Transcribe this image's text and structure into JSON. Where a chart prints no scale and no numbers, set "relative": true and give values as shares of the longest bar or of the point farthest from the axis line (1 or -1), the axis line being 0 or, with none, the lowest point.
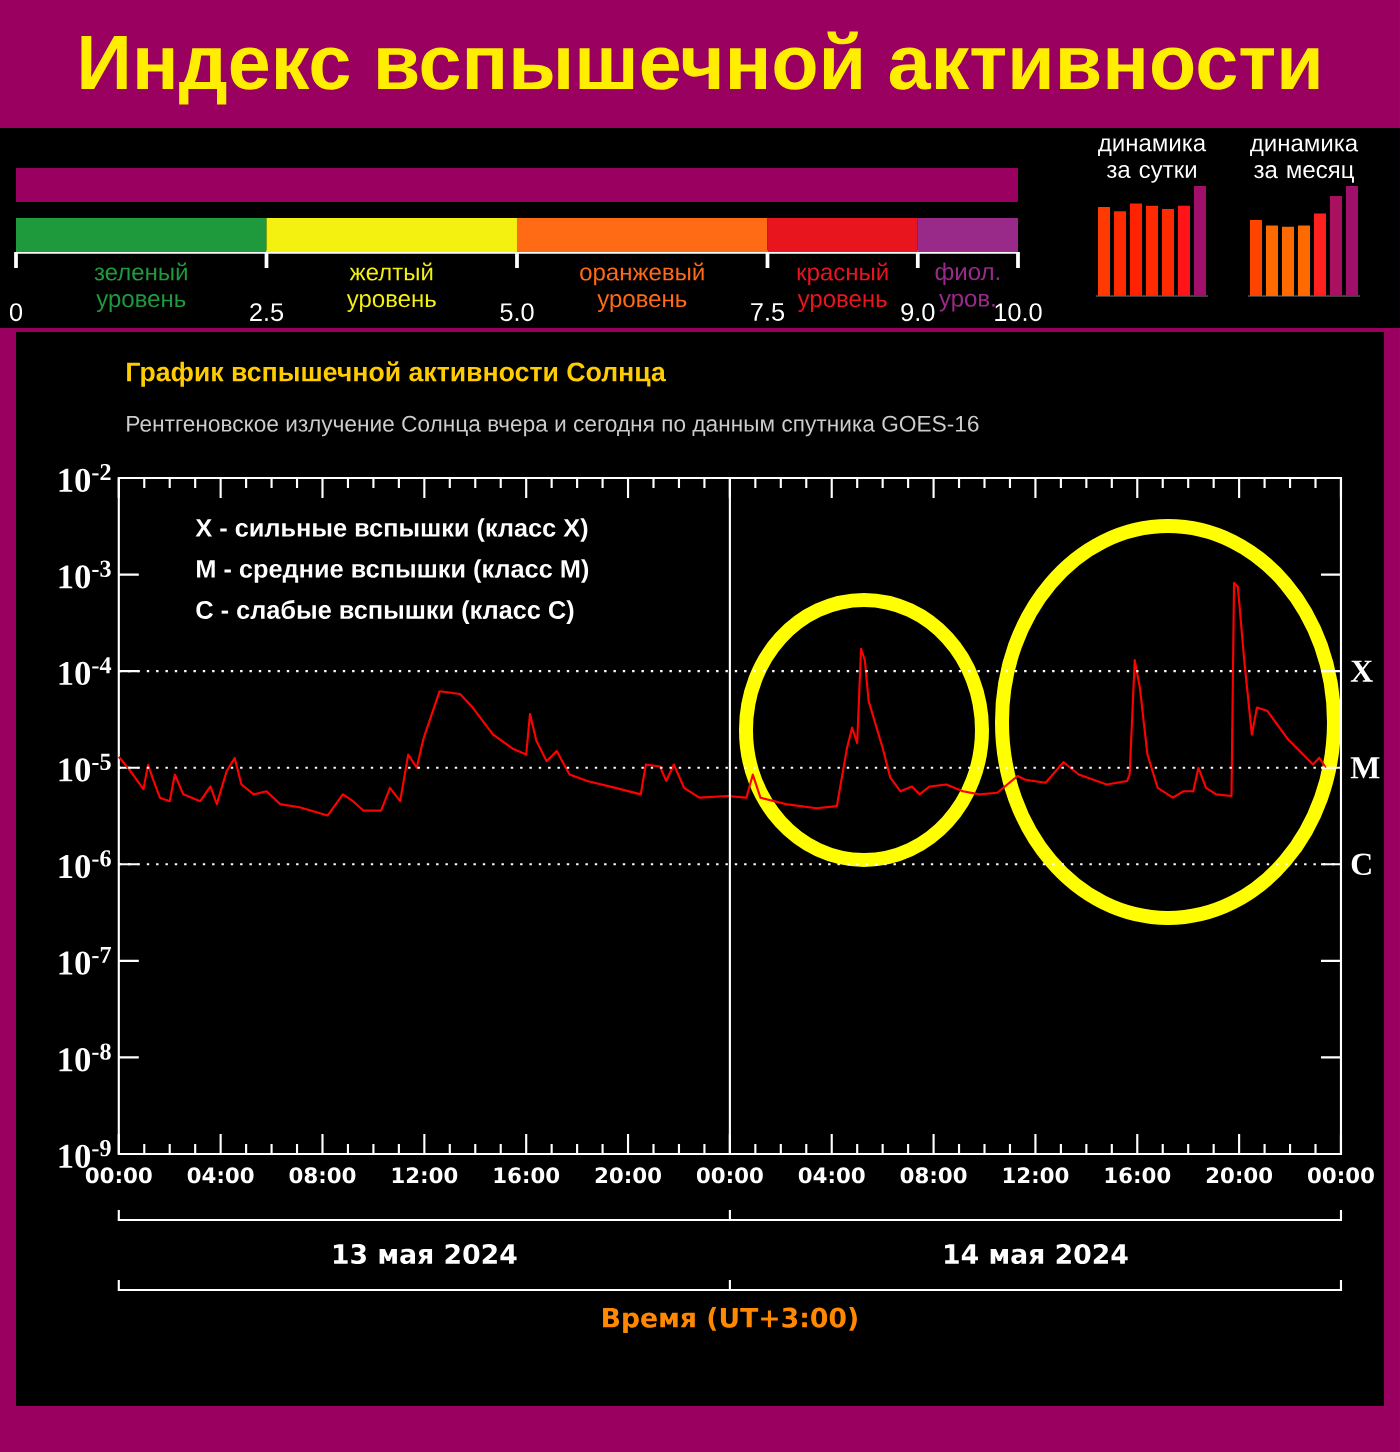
{
  "chart_data": [
    {
      "type": "bar",
      "title": "Индекс вспышечной активности",
      "orientation": "horizontal",
      "stacked": true,
      "categories": [
        null,
        null
      ],
      "xlim": [
        0,
        10
      ],
      "xticks": [
        0,
        2.5,
        {
          "value": 5,
          "label": "5.0"
        },
        7.5,
        {
          "value": 9,
          "label": "9.0"
        },
        {
          "value": 10,
          "label": "10.0"
        }
      ],
      "series": [
        {
          "color": "#990060",
          "values": [
            10,
            null
          ]
        },
        {
          "name": "зеленый уровень",
          "color": "#1e9a3c",
          "values": [
            null,
            2.5
          ]
        },
        {
          "name": "желтый уровень",
          "color": "#f4f010",
          "values": [
            null,
            2.5
          ]
        },
        {
          "name": "оранжевый уровень",
          "color": "#ff6a14",
          "values": [
            null,
            2.5
          ]
        },
        {
          "name": "красный уровень",
          "color": "#e8141e",
          "values": [
            null,
            1.5
          ]
        },
        {
          "name": "фиол. уров.",
          "color": "#9a2a8a",
          "values": [
            null,
            1
          ]
        }
      ]
    },
    {
      "type": "bar",
      "title": "динамика за сутки",
      "relative": true,
      "categories": [
        null,
        null,
        null,
        null,
        null,
        null,
        null
      ],
      "values": [
        0.81,
        0.77,
        0.84,
        0.82,
        0.79,
        0.82,
        1
      ],
      "colors": [
        "#ff3a00",
        "#ff2a00",
        "#ff2200",
        "#ff2a00",
        "#ff2a00",
        "#ff1418",
        "#a0106a"
      ]
    },
    {
      "type": "bar",
      "title": "динамика за месяц",
      "relative": true,
      "categories": [
        null,
        null,
        null,
        null,
        null,
        null,
        null
      ],
      "values": [
        0.69,
        0.64,
        0.63,
        0.64,
        0.75,
        0.91,
        1
      ],
      "colors": [
        "#ff4400",
        "#ff6a00",
        "#ff6a00",
        "#ff6a00",
        "#ff2020",
        "#aa1060",
        "#a0106a"
      ]
    },
    {
      "type": "line",
      "title": "График вспышечной активности Солнца",
      "subtitle": "Рентгеновское излучение Солнца вчера и сегодня по данным спутника GOES-16",
      "xlabel": "Время (UT+3:00)",
      "log": "y",
      "annotations": [
        "13 мая 2024",
        "14 мая 2024",
        "X  - сильные вспышки (класс X)",
        "M - средние вспышки (класс M)",
        "C  - слабые вспышки (класс C)"
      ],
      "xlim": [
        "2024-05-13T00:00",
        "2024-05-15T00:00"
      ],
      "ylim": [
        1e-09,
        0.01
      ],
      "xticks": [
        {
          "value": "2024-05-13T00:00",
          "label": "00:00"
        },
        {
          "value": "2024-05-13T01:00",
          "label": null
        },
        {
          "value": "2024-05-13T02:00",
          "label": null
        },
        {
          "value": "2024-05-13T03:00",
          "label": null
        },
        {
          "value": "2024-05-13T04:00",
          "label": "04:00"
        },
        {
          "value": "2024-05-13T05:00",
          "label": null
        },
        {
          "value": "2024-05-13T06:00",
          "label": null
        },
        {
          "value": "2024-05-13T07:00",
          "label": null
        },
        {
          "value": "2024-05-13T08:00",
          "label": "08:00"
        },
        {
          "value": "2024-05-13T09:00",
          "label": null
        },
        {
          "value": "2024-05-13T10:00",
          "label": null
        },
        {
          "value": "2024-05-13T11:00",
          "label": null
        },
        {
          "value": "2024-05-13T12:00",
          "label": "12:00"
        },
        {
          "value": "2024-05-13T13:00",
          "label": null
        },
        {
          "value": "2024-05-13T14:00",
          "label": null
        },
        {
          "value": "2024-05-13T15:00",
          "label": null
        },
        {
          "value": "2024-05-13T16:00",
          "label": "16:00"
        },
        {
          "value": "2024-05-13T17:00",
          "label": null
        },
        {
          "value": "2024-05-13T18:00",
          "label": null
        },
        {
          "value": "2024-05-13T19:00",
          "label": null
        },
        {
          "value": "2024-05-13T20:00",
          "label": "20:00"
        },
        {
          "value": "2024-05-13T21:00",
          "label": null
        },
        {
          "value": "2024-05-13T22:00",
          "label": null
        },
        {
          "value": "2024-05-13T23:00",
          "label": null
        },
        {
          "value": "2024-05-14T00:00",
          "label": "00:00"
        },
        {
          "value": "2024-05-14T01:00",
          "label": null
        },
        {
          "value": "2024-05-14T02:00",
          "label": null
        },
        {
          "value": "2024-05-14T03:00",
          "label": null
        },
        {
          "value": "2024-05-14T04:00",
          "label": "04:00"
        },
        {
          "value": "2024-05-14T05:00",
          "label": null
        },
        {
          "value": "2024-05-14T06:00",
          "label": null
        },
        {
          "value": "2024-05-14T07:00",
          "label": null
        },
        {
          "value": "2024-05-14T08:00",
          "label": "08:00"
        },
        {
          "value": "2024-05-14T09:00",
          "label": null
        },
        {
          "value": "2024-05-14T10:00",
          "label": null
        },
        {
          "value": "2024-05-14T11:00",
          "label": null
        },
        {
          "value": "2024-05-14T12:00",
          "label": "12:00"
        },
        {
          "value": "2024-05-14T13:00",
          "label": null
        },
        {
          "value": "2024-05-14T14:00",
          "label": null
        },
        {
          "value": "2024-05-14T15:00",
          "label": null
        },
        {
          "value": "2024-05-14T16:00",
          "label": "16:00"
        },
        {
          "value": "2024-05-14T17:00",
          "label": null
        },
        {
          "value": "2024-05-14T18:00",
          "label": null
        },
        {
          "value": "2024-05-14T19:00",
          "label": null
        },
        {
          "value": "2024-05-14T20:00",
          "label": "20:00"
        },
        {
          "value": "2024-05-14T21:00",
          "label": null
        },
        {
          "value": "2024-05-14T22:00",
          "label": null
        },
        {
          "value": "2024-05-14T23:00",
          "label": null
        },
        {
          "value": "2024-05-15T00:00",
          "label": "00:00"
        }
      ],
      "yticks": [
        {
          "value": 1e-09,
          "label": "10$^{-9}$"
        },
        {
          "value": 1e-08,
          "label": "10$^{-8}$"
        },
        {
          "value": 1e-07,
          "label": "10$^{-7}$"
        },
        {
          "value": 1e-06,
          "label": "10$^{-6}$"
        },
        {
          "value": 1e-05,
          "label": "10$^{-5}$"
        },
        {
          "value": 0.0001,
          "label": "10$^{-4}$"
        },
        {
          "value": 0.001,
          "label": "10$^{-3}$"
        },
        {
          "value": 0.01,
          "label": "10$^{-2}$"
        }
      ],
      "ref_lines": [
        {
          "axis": "y",
          "value": 0.0001,
          "label": "X",
          "color": "#ffffff",
          "line_style": "dotted"
        },
        {
          "axis": "y",
          "value": 1e-05,
          "label": "M",
          "color": "#ffffff",
          "line_style": "dotted"
        },
        {
          "axis": "y",
          "value": 1e-06,
          "label": "C",
          "color": "#ffffff",
          "line_style": "dotted"
        },
        {
          "axis": "x",
          "value": "2024-05-14T00:00",
          "color": "#ffffff",
          "line_style": "solid"
        }
      ],
      "x": [
        "2024-05-13T00:00",
        "2024-05-13T00:27",
        "2024-05-13T00:58",
        "2024-05-13T01:09",
        "2024-05-13T01:22",
        "2024-05-13T01:37",
        "2024-05-13T02:00",
        "2024-05-13T02:12",
        "2024-05-13T02:32",
        "2024-05-13T03:12",
        "2024-05-13T03:36",
        "2024-05-13T03:51",
        "2024-05-13T04:14",
        "2024-05-13T04:33",
        "2024-05-13T04:49",
        "2024-05-13T05:18",
        "2024-05-13T05:48",
        "2024-05-13T06:20",
        "2024-05-13T07:06",
        "2024-05-13T08:12",
        "2024-05-13T08:48",
        "2024-05-13T09:12",
        "2024-05-13T09:36",
        "2024-05-13T10:18",
        "2024-05-13T10:39",
        "2024-05-13T11:03",
        "2024-05-13T11:22",
        "2024-05-13T11:42",
        "2024-05-13T11:58",
        "2024-05-13T12:36",
        "2024-05-13T13:24",
        "2024-05-13T13:54",
        "2024-05-13T14:42",
        "2024-05-13T15:30",
        "2024-05-13T16:00",
        "2024-05-13T16:09",
        "2024-05-13T16:24",
        "2024-05-13T16:48",
        "2024-05-13T17:12",
        "2024-05-13T17:42",
        "2024-05-13T18:24",
        "2024-05-13T19:42",
        "2024-05-13T20:30",
        "2024-05-13T20:42",
        "2024-05-13T21:15",
        "2024-05-13T21:30",
        "2024-05-13T21:48",
        "2024-05-13T22:12",
        "2024-05-13T22:48",
        "2024-05-13T23:54",
        "2024-05-14T00:39",
        "2024-05-14T00:54",
        "2024-05-14T01:12",
        "2024-05-14T02:12",
        "2024-05-14T03:24",
        "2024-05-14T04:12",
        "2024-05-14T04:36",
        "2024-05-14T04:48",
        "2024-05-14T05:00",
        "2024-05-14T05:09",
        "2024-05-14T05:18",
        "2024-05-14T05:27",
        "2024-05-14T06:00",
        "2024-05-14T06:18",
        "2024-05-14T06:42",
        "2024-05-14T07:09",
        "2024-05-14T07:27",
        "2024-05-14T07:51",
        "2024-05-14T08:30",
        "2024-05-14T09:09",
        "2024-05-14T09:48",
        "2024-05-14T10:30",
        "2024-05-14T11:18",
        "2024-05-14T11:36",
        "2024-05-14T12:24",
        "2024-05-14T13:06",
        "2024-05-14T13:42",
        "2024-05-14T14:48",
        "2024-05-14T15:36",
        "2024-05-14T15:42",
        "2024-05-14T15:54",
        "2024-05-14T16:06",
        "2024-05-14T16:24",
        "2024-05-14T16:48",
        "2024-05-14T17:24",
        "2024-05-14T17:48",
        "2024-05-14T18:12",
        "2024-05-14T18:24",
        "2024-05-14T18:42",
        "2024-05-14T19:06",
        "2024-05-14T19:42",
        "2024-05-14T19:48",
        "2024-05-14T19:57",
        "2024-05-14T20:12",
        "2024-05-14T20:30",
        "2024-05-14T20:42",
        "2024-05-14T21:06",
        "2024-05-14T21:54",
        "2024-05-14T22:54",
        "2024-05-14T23:09",
        "2024-05-14T23:24"
      ],
      "series": [
        {
          "color": "#ff0000",
          "values": [
            1.3e-05,
            9.3e-06,
            6e-06,
            1.07e-05,
            7.3e-06,
            4.9e-06,
            4.5e-06,
            8.5e-06,
            5.3e-06,
            4.5e-06,
            6.4e-06,
            4.2e-06,
            9.2e-06,
            1.26e-05,
            6.7e-06,
            5.3e-06,
            5.7e-06,
            4.2e-06,
            3.9e-06,
            3.2e-06,
            5.3e-06,
            4.5e-06,
            3.6e-06,
            3.6e-06,
            6.2e-06,
            4.5e-06,
            1.37e-05,
            1e-05,
            2e-05,
            6.2e-05,
            5.8e-05,
            4.2e-05,
            2.2e-05,
            1.56e-05,
            1.37e-05,
            3.6e-05,
            1.9e-05,
            1.17e-05,
            1.49e-05,
            8.5e-06,
            7.3e-06,
            6e-06,
            5.3e-06,
            1.08e-05,
            1.03e-05,
            7.3e-06,
            1.08e-05,
            6.2e-06,
            4.9e-06,
            5.1e-06,
            4.9e-06,
            8.5e-06,
            4.9e-06,
            4.2e-06,
            3.8e-06,
            4e-06,
            1.6e-05,
            2.6e-05,
            1.8e-05,
            0.00017,
            0.00013,
            4.9e-05,
            1.6e-05,
            7.9e-06,
            5.7e-06,
            6.4e-06,
            5.3e-06,
            6.4e-06,
            6.7e-06,
            5.7e-06,
            5.3e-06,
            5.5e-06,
            8.2e-06,
            7.5e-06,
            7e-06,
            1.14e-05,
            8.5e-06,
            6.7e-06,
            7.3e-06,
            8.5e-06,
            0.00013,
            6.8e-05,
            1.37e-05,
            6.2e-06,
            4.9e-06,
            5.7e-06,
            5.7e-06,
            1e-05,
            6.2e-06,
            5.3e-06,
            5.1e-06,
            0.00082,
            0.00075,
            0.00013,
            2.2e-05,
            4.2e-05,
            3.9e-05,
            2e-05,
            1.08e-05,
            1.27e-05,
            1e-05
          ]
        }
      ]
    }
  ]
}
